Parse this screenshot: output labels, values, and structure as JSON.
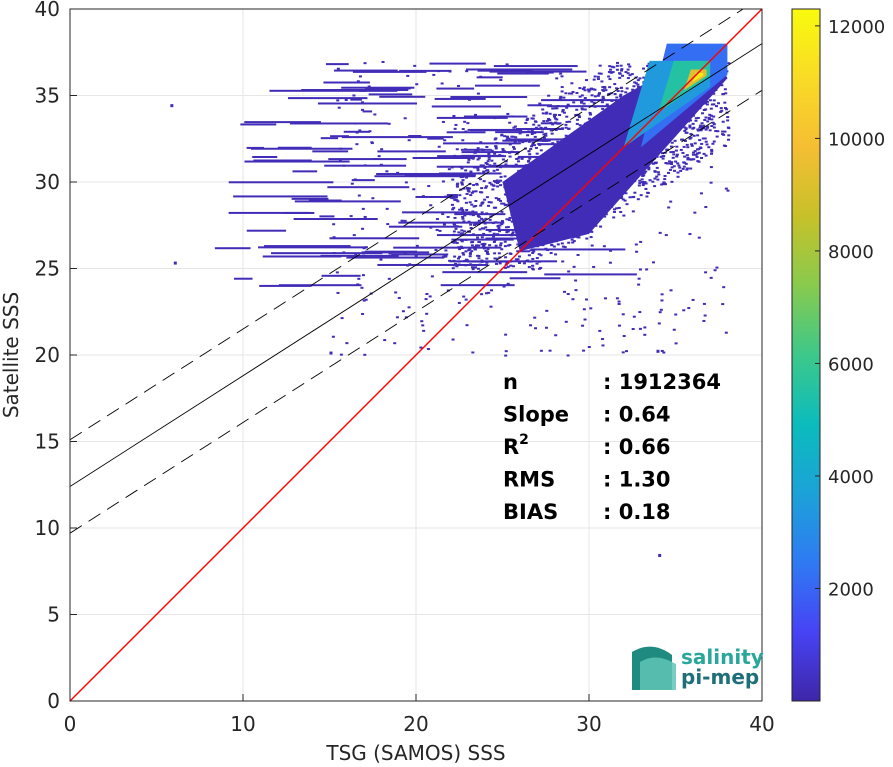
{
  "chart_data": {
    "type": "heatmap",
    "subtype": "2D density scatter (satellite vs in-situ salinity)",
    "xlabel": "TSG (SAMOS) SSS",
    "ylabel": "Satellite SSS",
    "xlim": [
      0,
      40
    ],
    "ylim": [
      0,
      40
    ],
    "xticks": [
      0,
      10,
      20,
      30,
      40
    ],
    "yticks": [
      0,
      5,
      10,
      15,
      20,
      25,
      30,
      35,
      40
    ],
    "grid": true,
    "colormap": "parula",
    "colorbar": {
      "min": 0,
      "max": 12300,
      "ticks": [
        2000,
        4000,
        6000,
        8000,
        10000,
        12000
      ],
      "colors": [
        "#3e26a8",
        "#4743f5",
        "#2f7af3",
        "#1ca2d8",
        "#0bbcbc",
        "#3dc88a",
        "#88ca4e",
        "#c7c129",
        "#f5be33",
        "#f9db26",
        "#f9fb0e"
      ]
    },
    "lines": [
      {
        "name": "identity",
        "slope": 1.0,
        "intercept": 0.0,
        "color": "#ff0000",
        "style": "solid"
      },
      {
        "name": "fit",
        "slope": 0.64,
        "intercept": 12.4,
        "color": "#000000",
        "style": "solid"
      },
      {
        "name": "fit-upper",
        "slope": 0.64,
        "intercept": 15.1,
        "color": "#000000",
        "style": "dashed"
      },
      {
        "name": "fit-lower",
        "slope": 0.64,
        "intercept": 9.7,
        "color": "#000000",
        "style": "dashed"
      }
    ],
    "stats": [
      {
        "label": "n",
        "value": ": 1912364"
      },
      {
        "label": "Slope",
        "value": ": 0.64"
      },
      {
        "label": "R",
        "sup": "2",
        "value": ": 0.66"
      },
      {
        "label": "RMS",
        "value": ": 1.30"
      },
      {
        "label": "BIAS",
        "value": ": 0.18"
      }
    ],
    "density_regions": [
      {
        "x": [
          33,
          38
        ],
        "y": [
          32,
          38
        ],
        "level": 0.18
      },
      {
        "x": [
          32,
          37
        ],
        "y": [
          32,
          37
        ],
        "level": 0.28
      },
      {
        "x": [
          34,
          37
        ],
        "y": [
          34,
          37
        ],
        "level": 0.45
      },
      {
        "x": [
          35.5,
          36.8
        ],
        "y": [
          35.3,
          36.5
        ],
        "level": 0.75
      },
      {
        "x": [
          36,
          36.6
        ],
        "y": [
          35.8,
          36.3
        ],
        "level": 0.95
      }
    ],
    "outliers": [
      {
        "x": 34,
        "y": 8.5
      },
      {
        "x": 33.9,
        "y": 20.3
      },
      {
        "x": 5.8,
        "y": 34.5
      },
      {
        "x": 6.0,
        "y": 25.4
      },
      {
        "x": 15.0,
        "y": 20.2
      }
    ]
  },
  "logo": {
    "line1": "salinity",
    "line2": "pi-mep",
    "color": "#2aa79b"
  }
}
